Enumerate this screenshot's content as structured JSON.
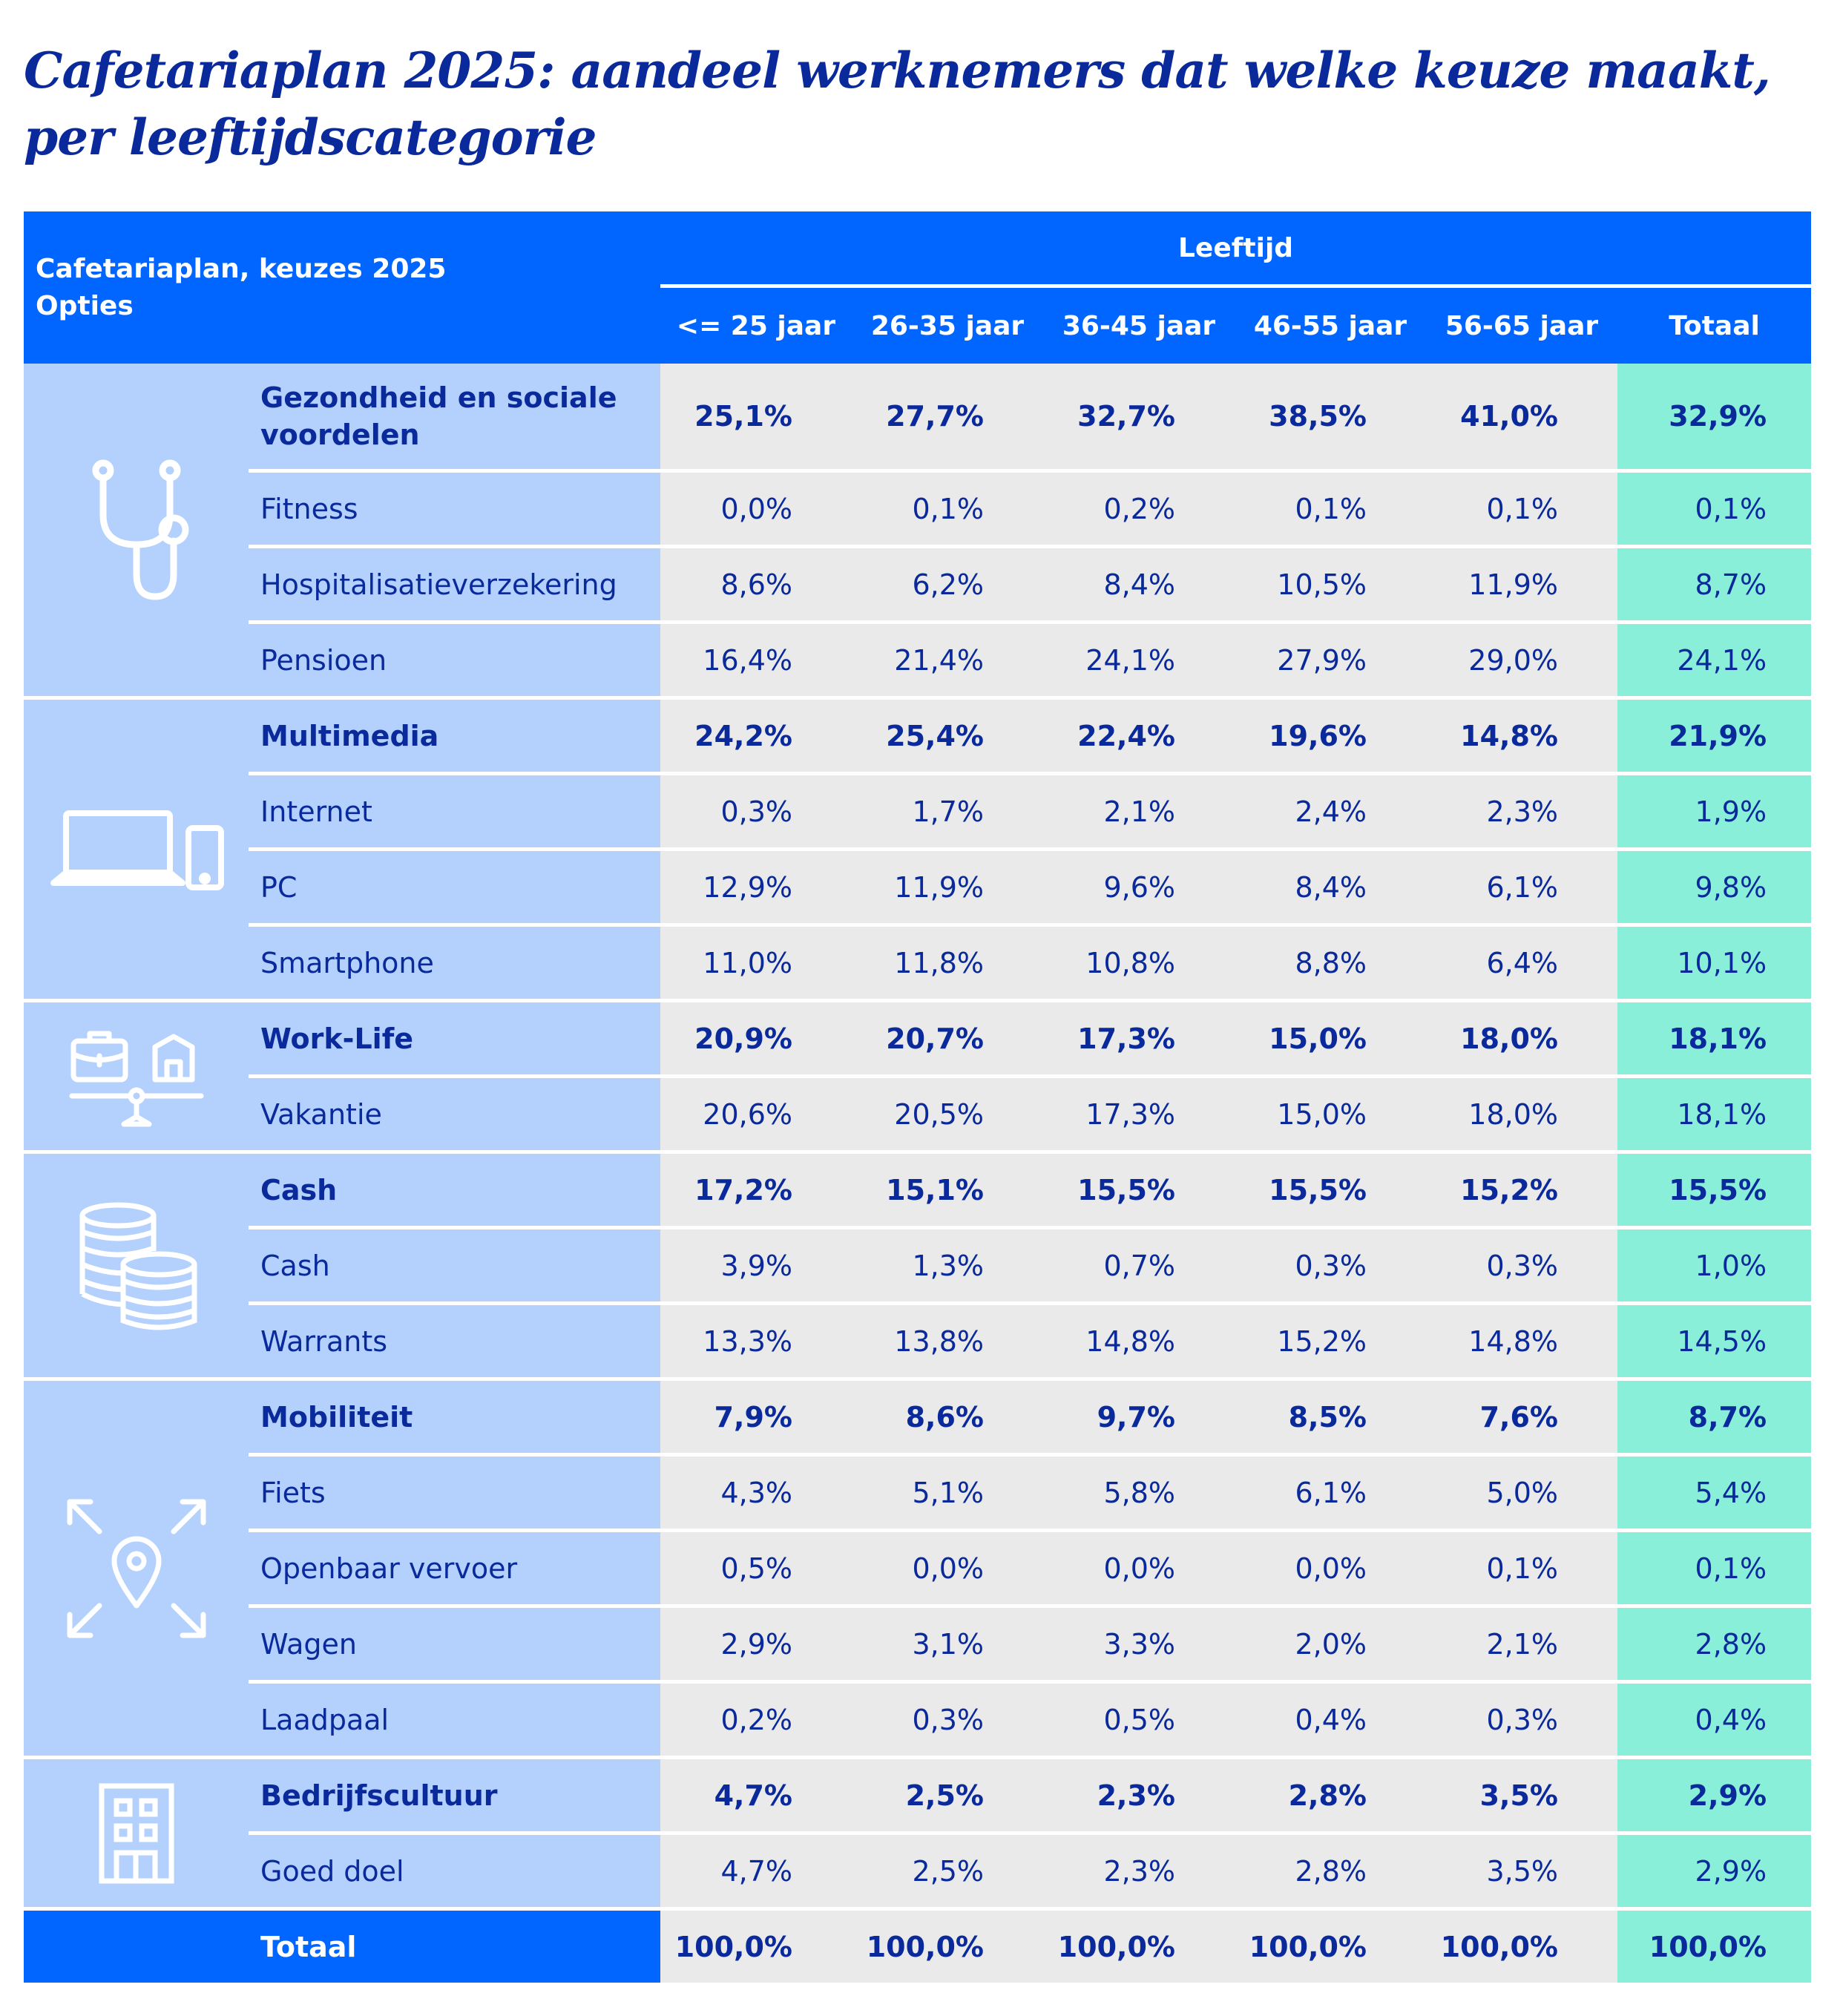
{
  "title": "Cafetariaplan 2025: aandeel werknemers dat welke keuze maakt, per leeftijdscategorie",
  "header": {
    "left_line1": "Cafetariaplan, keuzes 2025",
    "left_line2": "Opties",
    "group": "Leeftijd",
    "columns": [
      "<= 25 jaar",
      "26-35 jaar",
      "36-45 jaar",
      "46-55 jaar",
      "56-65 jaar",
      "Totaal"
    ]
  },
  "colors": {
    "header": "#0066ff",
    "label_bg": "#b3d1fc",
    "value_bg": "#eaeaea",
    "total_bg": "#8aefd8",
    "text": "#0a2a9c"
  },
  "groups": [
    {
      "icon": "stethoscope-icon",
      "rows": [
        {
          "label": "Gezondheid en sociale voordelen",
          "bold": true,
          "values": [
            "25,1%",
            "27,7%",
            "32,7%",
            "38,5%",
            "41,0%",
            "32,9%"
          ]
        },
        {
          "label": "Fitness",
          "values": [
            "0,0%",
            "0,1%",
            "0,2%",
            "0,1%",
            "0,1%",
            "0,1%"
          ]
        },
        {
          "label": "Hospitalisatieverzekering",
          "values": [
            "8,6%",
            "6,2%",
            "8,4%",
            "10,5%",
            "11,9%",
            "8,7%"
          ]
        },
        {
          "label": "Pensioen",
          "values": [
            "16,4%",
            "21,4%",
            "24,1%",
            "27,9%",
            "29,0%",
            "24,1%"
          ]
        }
      ]
    },
    {
      "icon": "laptop-phone-icon",
      "rows": [
        {
          "label": "Multimedia",
          "bold": true,
          "values": [
            "24,2%",
            "25,4%",
            "22,4%",
            "19,6%",
            "14,8%",
            "21,9%"
          ]
        },
        {
          "label": "Internet",
          "values": [
            "0,3%",
            "1,7%",
            "2,1%",
            "2,4%",
            "2,3%",
            "1,9%"
          ]
        },
        {
          "label": "PC",
          "values": [
            "12,9%",
            "11,9%",
            "9,6%",
            "8,4%",
            "6,1%",
            "9,8%"
          ]
        },
        {
          "label": "Smartphone",
          "values": [
            "11,0%",
            "11,8%",
            "10,8%",
            "8,8%",
            "6,4%",
            "10,1%"
          ]
        }
      ]
    },
    {
      "icon": "work-life-balance-icon",
      "rows": [
        {
          "label": "Work-Life",
          "bold": true,
          "values": [
            "20,9%",
            "20,7%",
            "17,3%",
            "15,0%",
            "18,0%",
            "18,1%"
          ]
        },
        {
          "label": "Vakantie",
          "values": [
            "20,6%",
            "20,5%",
            "17,3%",
            "15,0%",
            "18,0%",
            "18,1%"
          ]
        }
      ]
    },
    {
      "icon": "coins-icon",
      "rows": [
        {
          "label": "Cash",
          "bold": true,
          "values": [
            "17,2%",
            "15,1%",
            "15,5%",
            "15,5%",
            "15,2%",
            "15,5%"
          ]
        },
        {
          "label": "Cash",
          "values": [
            "3,9%",
            "1,3%",
            "0,7%",
            "0,3%",
            "0,3%",
            "1,0%"
          ]
        },
        {
          "label": "Warrants",
          "values": [
            "13,3%",
            "13,8%",
            "14,8%",
            "15,2%",
            "14,8%",
            "14,5%"
          ]
        }
      ]
    },
    {
      "icon": "location-pin-arrows-icon",
      "rows": [
        {
          "label": "Mobiliteit",
          "bold": true,
          "values": [
            "7,9%",
            "8,6%",
            "9,7%",
            "8,5%",
            "7,6%",
            "8,7%"
          ]
        },
        {
          "label": "Fiets",
          "values": [
            "4,3%",
            "5,1%",
            "5,8%",
            "6,1%",
            "5,0%",
            "5,4%"
          ]
        },
        {
          "label": "Openbaar vervoer",
          "values": [
            "0,5%",
            "0,0%",
            "0,0%",
            "0,0%",
            "0,1%",
            "0,1%"
          ]
        },
        {
          "label": "Wagen",
          "values": [
            "2,9%",
            "3,1%",
            "3,3%",
            "2,0%",
            "2,1%",
            "2,8%"
          ]
        },
        {
          "label": "Laadpaal",
          "values": [
            "0,2%",
            "0,3%",
            "0,5%",
            "0,4%",
            "0,3%",
            "0,4%"
          ]
        }
      ]
    },
    {
      "icon": "building-icon",
      "rows": [
        {
          "label": "Bedrijfscultuur",
          "bold": true,
          "values": [
            "4,7%",
            "2,5%",
            "2,3%",
            "2,8%",
            "3,5%",
            "2,9%"
          ]
        },
        {
          "label": "Goed doel",
          "values": [
            "4,7%",
            "2,5%",
            "2,3%",
            "2,8%",
            "3,5%",
            "2,9%"
          ]
        }
      ]
    }
  ],
  "total_row": {
    "label": "Totaal",
    "values": [
      "100,0%",
      "100,0%",
      "100,0%",
      "100,0%",
      "100,0%",
      "100,0%"
    ]
  },
  "chart_data": {
    "type": "table",
    "title": "Cafetariaplan 2025: aandeel werknemers dat welke keuze maakt, per leeftijdscategorie",
    "columns": [
      "<= 25 jaar",
      "26-35 jaar",
      "36-45 jaar",
      "46-55 jaar",
      "56-65 jaar",
      "Totaal"
    ],
    "unit": "%",
    "rows": [
      {
        "category": "Gezondheid en sociale voordelen",
        "level": "group",
        "values": [
          25.1,
          27.7,
          32.7,
          38.5,
          41.0,
          32.9
        ]
      },
      {
        "category": "Fitness",
        "level": "item",
        "values": [
          0.0,
          0.1,
          0.2,
          0.1,
          0.1,
          0.1
        ]
      },
      {
        "category": "Hospitalisatieverzekering",
        "level": "item",
        "values": [
          8.6,
          6.2,
          8.4,
          10.5,
          11.9,
          8.7
        ]
      },
      {
        "category": "Pensioen",
        "level": "item",
        "values": [
          16.4,
          21.4,
          24.1,
          27.9,
          29.0,
          24.1
        ]
      },
      {
        "category": "Multimedia",
        "level": "group",
        "values": [
          24.2,
          25.4,
          22.4,
          19.6,
          14.8,
          21.9
        ]
      },
      {
        "category": "Internet",
        "level": "item",
        "values": [
          0.3,
          1.7,
          2.1,
          2.4,
          2.3,
          1.9
        ]
      },
      {
        "category": "PC",
        "level": "item",
        "values": [
          12.9,
          11.9,
          9.6,
          8.4,
          6.1,
          9.8
        ]
      },
      {
        "category": "Smartphone",
        "level": "item",
        "values": [
          11.0,
          11.8,
          10.8,
          8.8,
          6.4,
          10.1
        ]
      },
      {
        "category": "Work-Life",
        "level": "group",
        "values": [
          20.9,
          20.7,
          17.3,
          15.0,
          18.0,
          18.1
        ]
      },
      {
        "category": "Vakantie",
        "level": "item",
        "values": [
          20.6,
          20.5,
          17.3,
          15.0,
          18.0,
          18.1
        ]
      },
      {
        "category": "Cash",
        "level": "group",
        "values": [
          17.2,
          15.1,
          15.5,
          15.5,
          15.2,
          15.5
        ]
      },
      {
        "category": "Cash",
        "level": "item",
        "values": [
          3.9,
          1.3,
          0.7,
          0.3,
          0.3,
          1.0
        ]
      },
      {
        "category": "Warrants",
        "level": "item",
        "values": [
          13.3,
          13.8,
          14.8,
          15.2,
          14.8,
          14.5
        ]
      },
      {
        "category": "Mobiliteit",
        "level": "group",
        "values": [
          7.9,
          8.6,
          9.7,
          8.5,
          7.6,
          8.7
        ]
      },
      {
        "category": "Fiets",
        "level": "item",
        "values": [
          4.3,
          5.1,
          5.8,
          6.1,
          5.0,
          5.4
        ]
      },
      {
        "category": "Openbaar vervoer",
        "level": "item",
        "values": [
          0.5,
          0.0,
          0.0,
          0.0,
          0.1,
          0.1
        ]
      },
      {
        "category": "Wagen",
        "level": "item",
        "values": [
          2.9,
          3.1,
          3.3,
          2.0,
          2.1,
          2.8
        ]
      },
      {
        "category": "Laadpaal",
        "level": "item",
        "values": [
          0.2,
          0.3,
          0.5,
          0.4,
          0.3,
          0.4
        ]
      },
      {
        "category": "Bedrijfscultuur",
        "level": "group",
        "values": [
          4.7,
          2.5,
          2.3,
          2.8,
          3.5,
          2.9
        ]
      },
      {
        "category": "Goed doel",
        "level": "item",
        "values": [
          4.7,
          2.5,
          2.3,
          2.8,
          3.5,
          2.9
        ]
      },
      {
        "category": "Totaal",
        "level": "total",
        "values": [
          100.0,
          100.0,
          100.0,
          100.0,
          100.0,
          100.0
        ]
      }
    ]
  }
}
